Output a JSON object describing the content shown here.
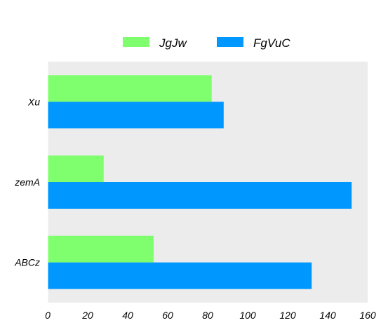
{
  "chart_data": {
    "type": "bar",
    "orientation": "horizontal",
    "categories": [
      "Xu",
      "zemA",
      "ABCz"
    ],
    "series": [
      {
        "name": "JgJw",
        "color": "#80ff6e",
        "values": [
          82,
          28,
          53
        ]
      },
      {
        "name": "FgVuC",
        "color": "#0098ff",
        "values": [
          88,
          152,
          132
        ]
      }
    ],
    "xlim": [
      0,
      160
    ],
    "xticks": [
      0,
      20,
      40,
      60,
      80,
      100,
      120,
      140,
      160
    ],
    "plot_background": "#ececec",
    "grid": false,
    "legend_position": "top-center"
  }
}
